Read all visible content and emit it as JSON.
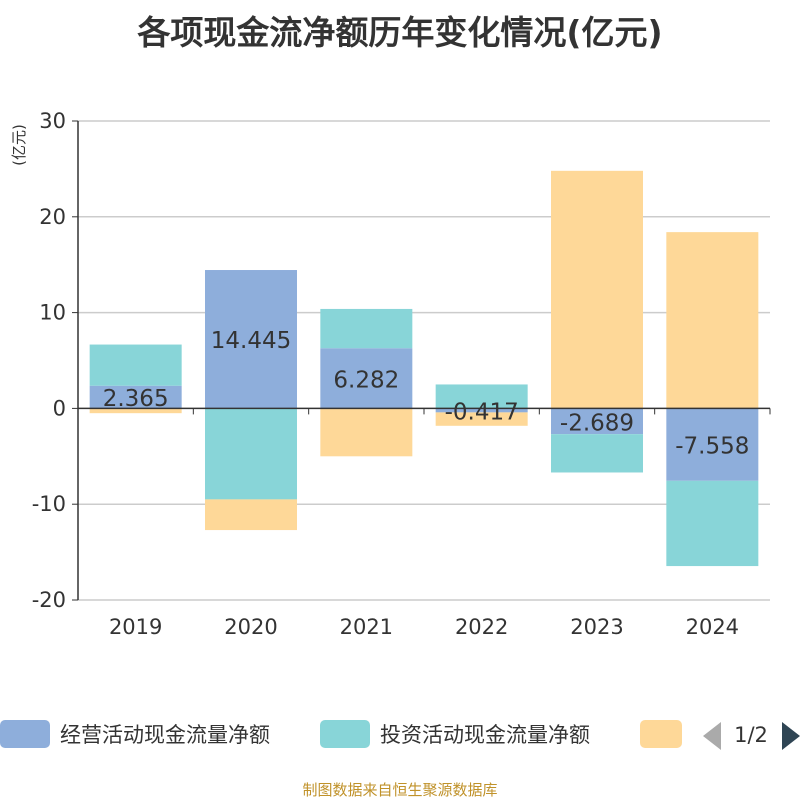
{
  "title": "各项现金流净额历年变化情况(亿元)",
  "footer": "制图数据来自恒生聚源数据库",
  "legend_pager": {
    "text": "1/2"
  },
  "icons": {
    "prev": "triangle-left-icon",
    "next": "triangle-right-icon"
  },
  "colors": {
    "operating": "#8eaedb",
    "investing": "#88d5d8",
    "financing": "#fed898",
    "unit": "#cc0000",
    "footer": "#c0922a",
    "pager_active": "#2f4554",
    "pager_inactive": "#aaaaaa"
  },
  "chart_data": {
    "type": "bar",
    "stacked": true,
    "categories": [
      "2019",
      "2020",
      "2021",
      "2022",
      "2023",
      "2024"
    ],
    "ylabel": "(亿元)",
    "ylim": [
      -20,
      30
    ],
    "yticks": [
      -20,
      -10,
      0,
      10,
      20,
      30
    ],
    "grid": true,
    "legend_position": "bottom",
    "series": [
      {
        "name": "经营活动现金流量净额",
        "values": [
          2.365,
          14.445,
          6.282,
          -0.417,
          -2.689,
          -7.558
        ],
        "labels": [
          "2.365",
          "14.445",
          "6.282",
          "-0.417",
          "-2.689",
          "-7.558"
        ]
      },
      {
        "name": "投资活动现金流量净额",
        "values": [
          4.3,
          -9.5,
          4.1,
          2.5,
          -4.0,
          -8.9
        ]
      },
      {
        "name": "",
        "values": [
          -0.5,
          -3.2,
          -5.0,
          -1.4,
          24.8,
          18.4
        ]
      }
    ]
  }
}
